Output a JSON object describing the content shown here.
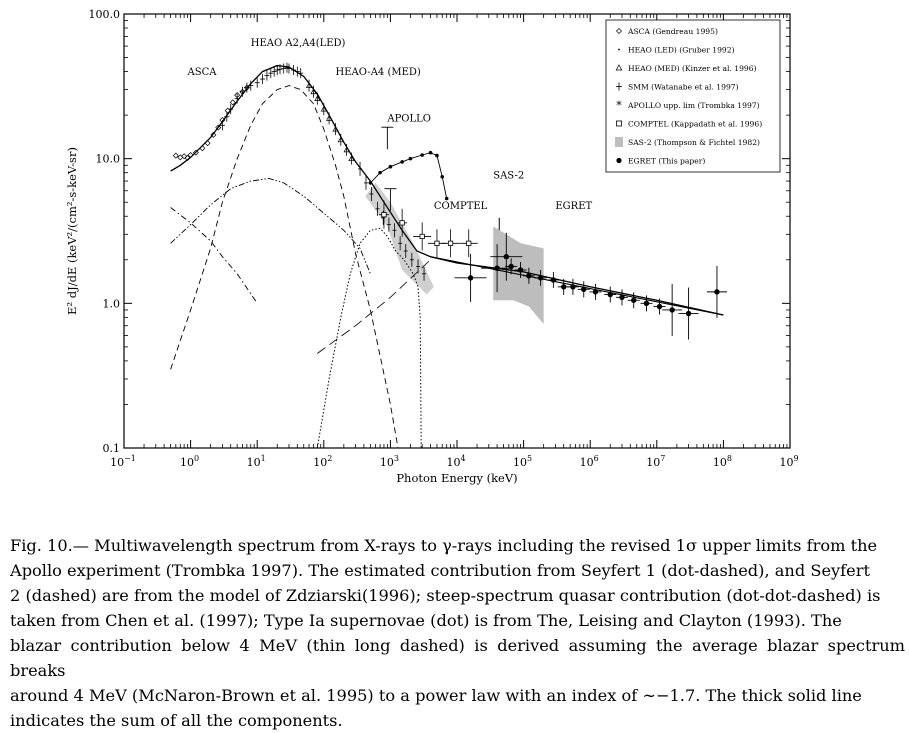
{
  "chart_data": {
    "type": "scatter",
    "xlabel": "Photon Energy (keV)",
    "ylabel": "E² dJ/dE (keV²/(cm²-s-keV-sr)",
    "x_scale": "log",
    "y_scale": "log",
    "xlim": [
      0.1,
      1000000000
    ],
    "ylim": [
      0.1,
      100
    ],
    "x_ticks": [
      {
        "value": 0.1,
        "base": "10",
        "exp": "−1"
      },
      {
        "value": 1,
        "base": "10",
        "exp": "0"
      },
      {
        "value": 10,
        "base": "10",
        "exp": "1"
      },
      {
        "value": 100,
        "base": "10",
        "exp": "2"
      },
      {
        "value": 1000,
        "base": "10",
        "exp": "3"
      },
      {
        "value": 10000,
        "base": "10",
        "exp": "4"
      },
      {
        "value": 100000,
        "base": "10",
        "exp": "5"
      },
      {
        "value": 1000000,
        "base": "10",
        "exp": "6"
      },
      {
        "value": 10000000,
        "base": "10",
        "exp": "7"
      },
      {
        "value": 100000000,
        "base": "10",
        "exp": "8"
      },
      {
        "value": 1000000000,
        "base": "10",
        "exp": "9"
      }
    ],
    "y_ticks": [
      {
        "value": 0.1,
        "label": "0.1"
      },
      {
        "value": 1,
        "label": "1.0"
      },
      {
        "value": 10,
        "label": "10.0"
      },
      {
        "value": 100,
        "label": "100.0"
      }
    ],
    "legend_position": "top-right",
    "legend": [
      {
        "label": "ASCA (Gendreau 1995)",
        "symbol": "diamond"
      },
      {
        "label": "HEAO (LED) (Gruber 1992)",
        "symbol": "dot"
      },
      {
        "label": "HEAO (MED) (Kinzer et al. 1996)",
        "symbol": "triangle"
      },
      {
        "label": "SMM (Watanabe et al. 1997)",
        "symbol": "plus-errorbar"
      },
      {
        "label": "APOLLO upp. lim (Trombka 1997)",
        "symbol": "star"
      },
      {
        "label": "COMPTEL (Kappadath et al. 1996)",
        "symbol": "square"
      },
      {
        "label": "SAS-2 (Thompson & Fichtel 1982)",
        "symbol": "gray-box"
      },
      {
        "label": "EGRET (This paper)",
        "symbol": "filled-circle"
      }
    ],
    "annotations": [
      {
        "text": "HEAO A2,A4(LED)",
        "x": 8,
        "y": 60
      },
      {
        "text": "ASCA",
        "x": 0.9,
        "y": 38
      },
      {
        "text": "HEAO-A4 (MED)",
        "x": 150,
        "y": 38
      },
      {
        "text": "APOLLO",
        "x": 900,
        "y": 18
      },
      {
        "text": "SAS-2",
        "x": 35000,
        "y": 7.3
      },
      {
        "text": "COMPTEL",
        "x": 4500,
        "y": 4.5
      },
      {
        "text": "EGRET",
        "x": 300000,
        "y": 4.5
      }
    ],
    "series": [
      {
        "label": "ASCA",
        "kind": "points",
        "points": [
          [
            0.6,
            10.5
          ],
          [
            0.7,
            10.2
          ],
          [
            0.8,
            10.4
          ],
          [
            0.9,
            10.1
          ],
          [
            1.0,
            10.6
          ],
          [
            1.2,
            11.0
          ],
          [
            1.5,
            11.8
          ],
          [
            1.8,
            12.8
          ],
          [
            2.2,
            14.6
          ],
          [
            2.6,
            16.4
          ],
          [
            3.0,
            18.5
          ],
          [
            3.6,
            21.5
          ],
          [
            4.3,
            24.5
          ],
          [
            5.0,
            27.5
          ],
          [
            6.0,
            29.0
          ],
          [
            7.0,
            31.0
          ]
        ]
      },
      {
        "label": "HEAO LED",
        "kind": "points",
        "points": [
          [
            3,
            17
          ],
          [
            3.5,
            19.5
          ],
          [
            4,
            22
          ],
          [
            5,
            26
          ],
          [
            6,
            29
          ],
          [
            7,
            31
          ],
          [
            8,
            32
          ],
          [
            10,
            33.5
          ],
          [
            12,
            35.5
          ],
          [
            14,
            37.5
          ],
          [
            16,
            39
          ],
          [
            18,
            40
          ],
          [
            20,
            41
          ],
          [
            22,
            41.5
          ],
          [
            25,
            42
          ],
          [
            28,
            42.5
          ],
          [
            30,
            42
          ],
          [
            35,
            41
          ],
          [
            40,
            40
          ],
          [
            45,
            39
          ]
        ]
      },
      {
        "label": "HEAO MED",
        "kind": "points",
        "points": [
          [
            60,
            32
          ],
          [
            70,
            29
          ],
          [
            80,
            26
          ],
          [
            100,
            22
          ],
          [
            120,
            19
          ],
          [
            150,
            16
          ],
          [
            180,
            13.5
          ],
          [
            220,
            11.5
          ],
          [
            260,
            10
          ]
        ]
      },
      {
        "label": "SMM",
        "kind": "points",
        "points": [
          [
            350,
            8.5
          ],
          [
            430,
            6.8
          ],
          [
            520,
            5.7
          ],
          [
            640,
            4.5
          ],
          [
            780,
            3.9
          ],
          [
            950,
            3.5
          ],
          [
            1150,
            3.2
          ],
          [
            1400,
            2.6
          ],
          [
            1700,
            2.3
          ],
          [
            2100,
            2.0
          ],
          [
            2600,
            1.8
          ],
          [
            3200,
            1.6
          ]
        ]
      },
      {
        "label": "APOLLO upp. lim",
        "kind": "line",
        "points": [
          [
            500,
            6.8
          ],
          [
            700,
            8.0
          ],
          [
            1000,
            8.8
          ],
          [
            1500,
            9.5
          ],
          [
            2000,
            10.0
          ],
          [
            3000,
            10.6
          ],
          [
            4000,
            11.0
          ],
          [
            5000,
            10.5
          ],
          [
            6000,
            7.5
          ],
          [
            7000,
            5.3
          ]
        ]
      },
      {
        "label": "COMPTEL",
        "kind": "points",
        "points": [
          [
            800,
            4.1
          ],
          [
            1500,
            3.6
          ],
          [
            3000,
            2.9
          ],
          [
            5000,
            2.6
          ],
          [
            8000,
            2.6
          ],
          [
            15000,
            2.6
          ]
        ]
      },
      {
        "label": "EGRET",
        "kind": "points",
        "points": [
          [
            16000,
            1.5
          ],
          [
            40000,
            1.75
          ],
          [
            55000,
            2.1
          ],
          [
            65000,
            1.8
          ],
          [
            90000,
            1.7
          ],
          [
            120000,
            1.55
          ],
          [
            180000,
            1.5
          ],
          [
            280000,
            1.45
          ],
          [
            400000,
            1.3
          ],
          [
            550000,
            1.3
          ],
          [
            800000,
            1.25
          ],
          [
            1200000,
            1.2
          ],
          [
            2000000,
            1.15
          ],
          [
            3000000,
            1.1
          ],
          [
            4500000,
            1.05
          ],
          [
            7000000,
            1.0
          ],
          [
            11000000,
            0.95
          ],
          [
            17000000,
            0.9
          ],
          [
            30000000,
            0.85
          ],
          [
            80000000,
            1.2
          ]
        ]
      },
      {
        "label": "Seyfert 1 (dot-dashed)",
        "kind": "model",
        "points": [
          [
            0.5,
            4.6
          ],
          [
            1,
            3.6
          ],
          [
            2,
            2.7
          ],
          [
            3,
            2.1
          ],
          [
            5,
            1.6
          ],
          [
            10,
            1.0
          ]
        ]
      },
      {
        "label": "Seyfert 2 (dashed)",
        "kind": "model",
        "points": [
          [
            0.5,
            0.35
          ],
          [
            1,
            0.9
          ],
          [
            2,
            2.4
          ],
          [
            3,
            5
          ],
          [
            5,
            10
          ],
          [
            8,
            17
          ],
          [
            12,
            24
          ],
          [
            20,
            30
          ],
          [
            30,
            32
          ],
          [
            45,
            30
          ],
          [
            70,
            24
          ],
          [
            100,
            16
          ],
          [
            150,
            9
          ],
          [
            200,
            5.5
          ],
          [
            300,
            2.2
          ],
          [
            500,
            0.9
          ],
          [
            1000,
            0.2
          ],
          [
            1300,
            0.1
          ]
        ]
      },
      {
        "label": "Quasar (dot-dot-dashed)",
        "kind": "model",
        "points": [
          [
            0.5,
            2.6
          ],
          [
            1,
            3.5
          ],
          [
            2,
            4.8
          ],
          [
            4,
            6.2
          ],
          [
            8,
            7.0
          ],
          [
            15,
            7.3
          ],
          [
            25,
            6.8
          ],
          [
            50,
            5.5
          ],
          [
            100,
            4.2
          ],
          [
            200,
            3.2
          ],
          [
            350,
            2.4
          ],
          [
            500,
            1.6
          ]
        ]
      },
      {
        "label": "Type Ia supernovae (dot)",
        "kind": "model",
        "points": [
          [
            80,
            0.1
          ],
          [
            120,
            0.3
          ],
          [
            180,
            0.8
          ],
          [
            250,
            1.6
          ],
          [
            350,
            2.6
          ],
          [
            500,
            3.2
          ],
          [
            700,
            3.3
          ],
          [
            900,
            2.9
          ],
          [
            1200,
            2.3
          ],
          [
            1600,
            2.0
          ],
          [
            2200,
            1.6
          ],
          [
            2600,
            1.3
          ],
          [
            2800,
            0.8
          ],
          [
            2900,
            0.1
          ]
        ]
      },
      {
        "label": "Blazar (thin long dashed)",
        "kind": "model",
        "points": [
          [
            80,
            0.45
          ],
          [
            300,
            0.7
          ],
          [
            1000,
            1.1
          ],
          [
            4000,
            2.0
          ]
        ]
      },
      {
        "label": "Sum of components (thick solid)",
        "kind": "model",
        "points": [
          [
            0.5,
            8.2
          ],
          [
            0.7,
            9.0
          ],
          [
            1,
            10.2
          ],
          [
            2,
            14
          ],
          [
            3,
            18
          ],
          [
            5,
            25
          ],
          [
            8,
            33
          ],
          [
            12,
            40
          ],
          [
            20,
            44
          ],
          [
            30,
            43
          ],
          [
            50,
            37
          ],
          [
            80,
            28
          ],
          [
            120,
            20
          ],
          [
            200,
            13
          ],
          [
            300,
            9.5
          ],
          [
            500,
            7.0
          ],
          [
            800,
            5.0
          ],
          [
            1500,
            3.2
          ],
          [
            2500,
            2.3
          ],
          [
            4000,
            2.1
          ],
          [
            10000,
            1.9
          ],
          [
            100000,
            1.65
          ],
          [
            1000000,
            1.3
          ],
          [
            10000000,
            1.05
          ],
          [
            100000000,
            0.83
          ]
        ]
      }
    ],
    "sas2_band": {
      "xlo": 35000,
      "xhi": 200000,
      "label": "SAS-2"
    }
  },
  "caption": {
    "lines": [
      "Fig. 10.— Multiwavelength spectrum from X-rays to γ-rays including the revised 1σ upper limits from the",
      "Apollo experiment (Trombka 1997). The estimated contribution from Seyfert 1 (dot-dashed), and Seyfert",
      "2 (dashed) are from the model of Zdziarski(1996); steep-spectrum quasar contribution (dot-dot-dashed) is",
      "taken from Chen et al. (1997); Type Ia supernovae (dot) is from The, Leising and Clayton (1993). The",
      "blazar contribution below 4 MeV (thin long dashed) is derived assuming the average blazar spectrum breaks",
      "around 4 MeV (McNaron-Brown et al. 1995) to a power law with an index of ∼−1.7. The thick solid line",
      "indicates the sum of all the components."
    ]
  }
}
